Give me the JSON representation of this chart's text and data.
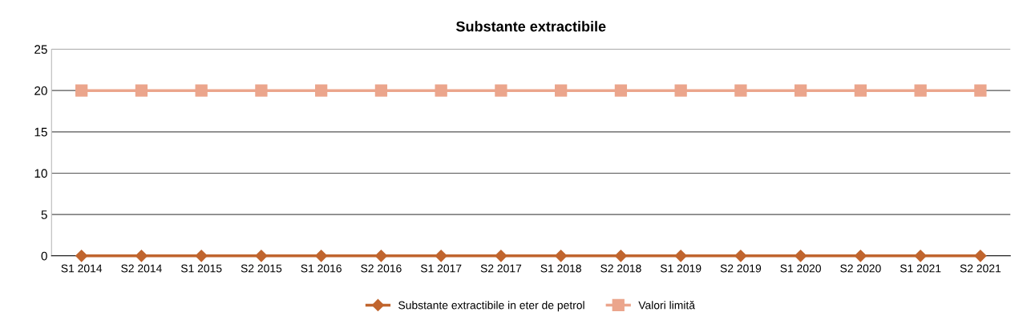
{
  "chart_data": {
    "type": "line",
    "title": "Substante extractibile",
    "categories": [
      "S1 2014",
      "S2 2014",
      "S1 2015",
      "S2 2015",
      "S1 2016",
      "S2 2016",
      "S1 2017",
      "S2 2017",
      "S1 2018",
      "S2 2018",
      "S1 2019",
      "S2 2019",
      "S1 2020",
      "S2 2020",
      "S1 2021",
      "S2 2021"
    ],
    "series": [
      {
        "name": "Substante extractibile in eter de petrol",
        "color": "#c0652e",
        "marker": "diamond",
        "values": [
          0,
          0,
          0,
          0,
          0,
          0,
          0,
          0,
          0,
          0,
          0,
          0,
          0,
          0,
          0,
          0
        ]
      },
      {
        "name": "Valori limită",
        "color": "#eba58c",
        "marker": "square",
        "values": [
          20,
          20,
          20,
          20,
          20,
          20,
          20,
          20,
          20,
          20,
          20,
          20,
          20,
          20,
          20,
          20
        ]
      }
    ],
    "ylim": [
      0,
      25
    ],
    "yticks": [
      0,
      5,
      10,
      15,
      20,
      25
    ],
    "grid": "y",
    "legend": "bottom",
    "line_style": "solid"
  }
}
